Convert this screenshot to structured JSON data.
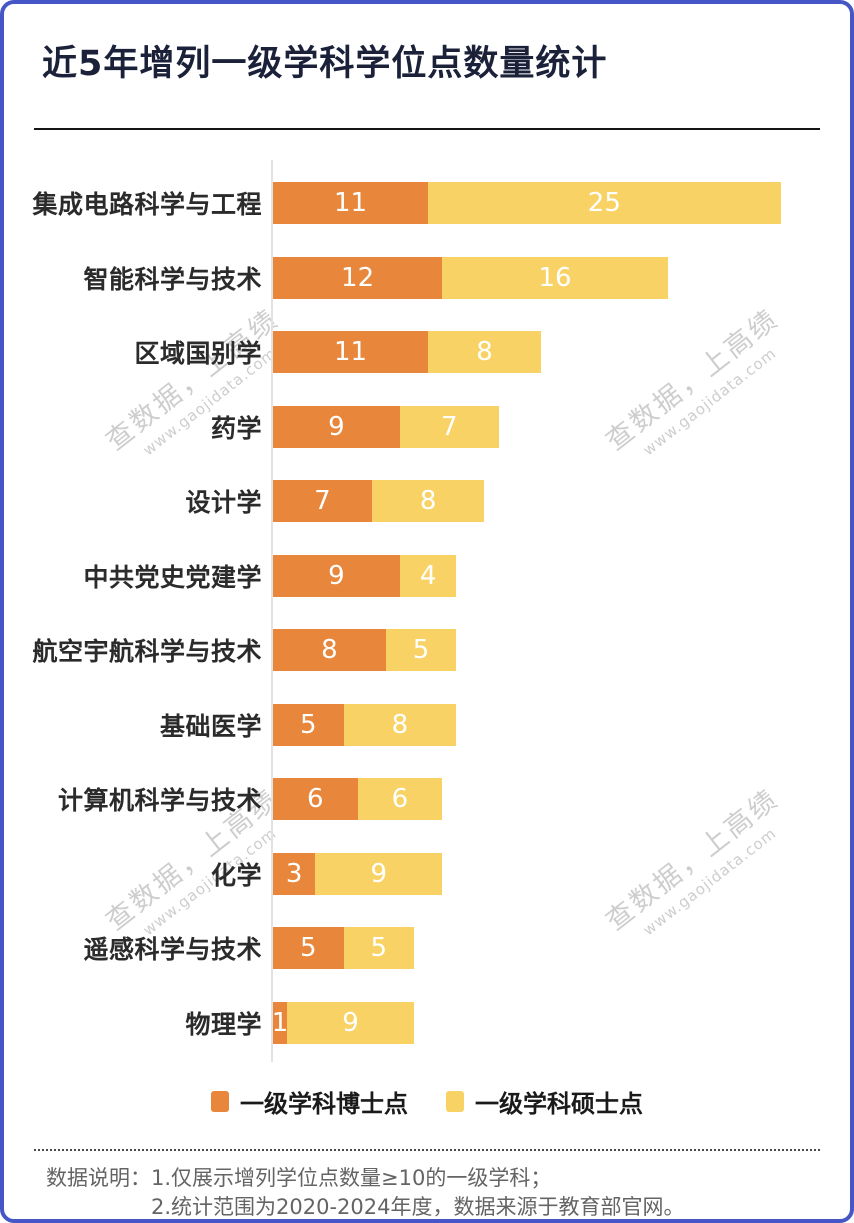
{
  "page": {
    "title": "近5年增列一级学科学位点数量统计"
  },
  "chart_data": {
    "type": "bar",
    "orientation": "horizontal",
    "stacked": true,
    "grid": false,
    "legend_position": "bottom",
    "xlim": [
      0,
      36
    ],
    "categories": [
      "集成电路科学与工程",
      "智能科学与技术",
      "区域国别学",
      "药学",
      "设计学",
      "中共党史党建学",
      "航空宇航科学与技术",
      "基础医学",
      "计算机科学与技术",
      "化学",
      "遥感科学与技术",
      "物理学"
    ],
    "series": [
      {
        "name": "一级学科博士点",
        "color": "#E8873B",
        "values": [
          11,
          12,
          11,
          9,
          7,
          9,
          8,
          5,
          6,
          3,
          5,
          1
        ]
      },
      {
        "name": "一级学科硕士点",
        "color": "#F9D266",
        "values": [
          25,
          16,
          8,
          7,
          8,
          4,
          5,
          8,
          6,
          9,
          5,
          9
        ]
      }
    ]
  },
  "footer": {
    "prefix": "数据说明：",
    "notes": [
      "1.仅展示增列学位点数量≥10的一级学科；",
      "2.统计范围为2020-2024年度，数据来源于教育部官网。"
    ]
  },
  "watermark": {
    "line1": "查数据，上高绩",
    "line2": "www.gaojidata.com"
  },
  "colors": {
    "doctor_bar": "#E8873B",
    "master_bar": "#F9D266",
    "title_text": "#1B2139",
    "frame_border": "#4756C6",
    "axis_line": "#E2E2E2",
    "bar_value_text": "#FFFFFF",
    "note_text": "#646464",
    "watermark_text": "#969696"
  }
}
